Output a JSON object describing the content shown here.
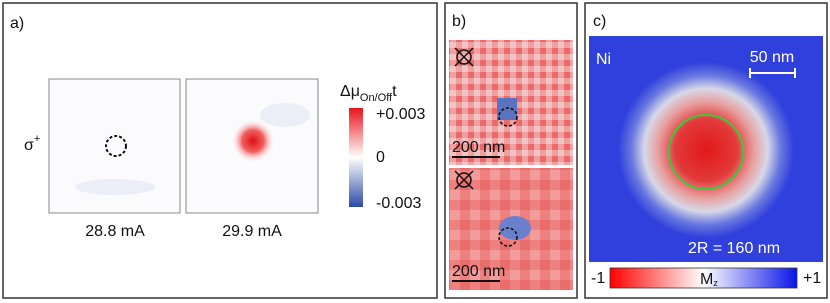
{
  "panels": [
    {
      "label": "a)",
      "row_label": {
        "symbol": "σ",
        "superscript": "+"
      },
      "images": [
        {
          "caption": "28.8 mA"
        },
        {
          "caption": "29.9 mA"
        }
      ],
      "colorbar": {
        "title": {
          "symbol": "Δμ",
          "subscript": "On/Off",
          "suffix": "t"
        },
        "ticks": [
          "+0.003",
          "0",
          "-0.003"
        ]
      }
    },
    {
      "label": "b)",
      "images": [
        {
          "scale_bar": "200 nm"
        },
        {
          "scale_bar": "200 nm"
        }
      ]
    },
    {
      "label": "c)",
      "element": "Ni",
      "scale_bar": "50 nm",
      "annotation": "2R = 160 nm",
      "colorbar": {
        "min_label": "-1",
        "title": {
          "symbol": "M",
          "subscript": "z"
        },
        "max_label": "+1"
      }
    }
  ]
}
